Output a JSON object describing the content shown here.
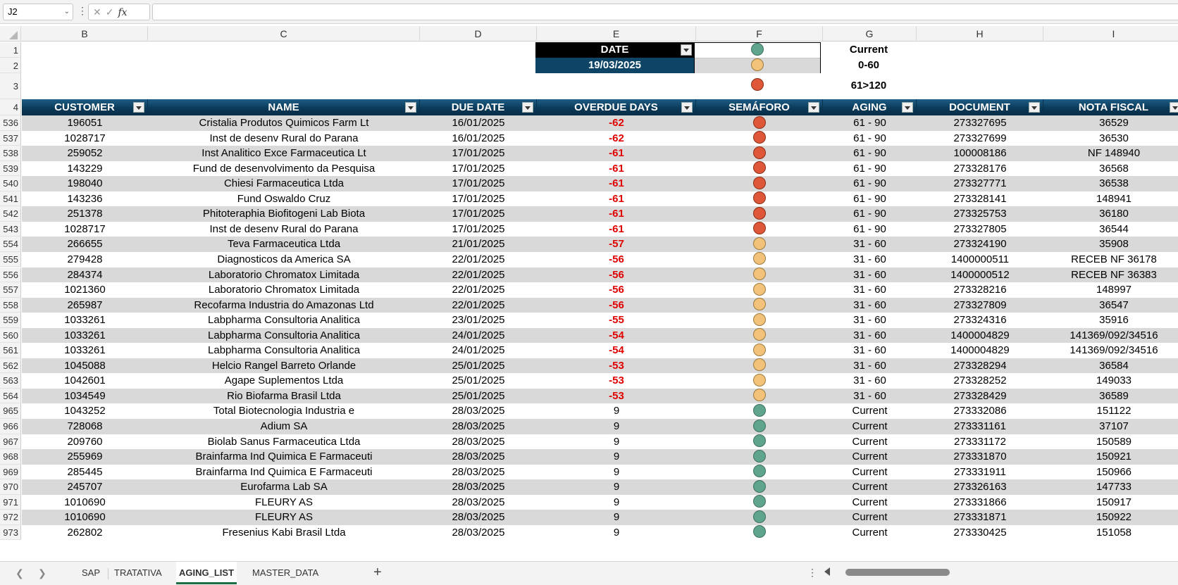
{
  "formula_bar": {
    "name_box": "J2",
    "formula": ""
  },
  "columns": [
    "B",
    "C",
    "D",
    "E",
    "F",
    "G",
    "H",
    "I"
  ],
  "row_numbers_top": [
    "1",
    "2",
    "3",
    "4"
  ],
  "info": {
    "date_label": "DATE",
    "date_value": "19/03/2025",
    "legend": [
      {
        "color": "green",
        "label": "Current"
      },
      {
        "color": "yellow",
        "label": "0-60"
      },
      {
        "color": "red",
        "label": "61>120"
      }
    ]
  },
  "table_headers": [
    "CUSTOMER",
    "NAME",
    "DUE DATE",
    "OVERDUE DAYS",
    "SEMÁFORO",
    "AGING",
    "DOCUMENT",
    "NOTA FISCAL"
  ],
  "rows": [
    {
      "n": "536",
      "customer": "196051",
      "name": "Cristalia Produtos Quimicos Farm Lt",
      "due": "16/01/2025",
      "overdue": "-62",
      "sem": "red",
      "aging": "61 - 90",
      "doc": "273327695",
      "nf": "36529"
    },
    {
      "n": "537",
      "customer": "1028717",
      "name": "Inst de desenv Rural do Parana",
      "due": "16/01/2025",
      "overdue": "-62",
      "sem": "red",
      "aging": "61 - 90",
      "doc": "273327699",
      "nf": "36530"
    },
    {
      "n": "538",
      "customer": "259052",
      "name": "Inst Analitico Exce Farmaceutica Lt",
      "due": "17/01/2025",
      "overdue": "-61",
      "sem": "red",
      "aging": "61 - 90",
      "doc": "100008186",
      "nf": "NF 148940"
    },
    {
      "n": "539",
      "customer": "143229",
      "name": "Fund de desenvolvimento da Pesquisa",
      "due": "17/01/2025",
      "overdue": "-61",
      "sem": "red",
      "aging": "61 - 90",
      "doc": "273328176",
      "nf": "36568"
    },
    {
      "n": "540",
      "customer": "198040",
      "name": "Chiesi Farmaceutica Ltda",
      "due": "17/01/2025",
      "overdue": "-61",
      "sem": "red",
      "aging": "61 - 90",
      "doc": "273327771",
      "nf": "36538"
    },
    {
      "n": "541",
      "customer": "143236",
      "name": "Fund Oswaldo Cruz",
      "due": "17/01/2025",
      "overdue": "-61",
      "sem": "red",
      "aging": "61 - 90",
      "doc": "273328141",
      "nf": "148941"
    },
    {
      "n": "542",
      "customer": "251378",
      "name": "Phitoteraphia Biofitogeni Lab Biota",
      "due": "17/01/2025",
      "overdue": "-61",
      "sem": "red",
      "aging": "61 - 90",
      "doc": "273325753",
      "nf": "36180"
    },
    {
      "n": "543",
      "customer": "1028717",
      "name": "Inst de desenv Rural do Parana",
      "due": "17/01/2025",
      "overdue": "-61",
      "sem": "red",
      "aging": "61 - 90",
      "doc": "273327805",
      "nf": "36544"
    },
    {
      "n": "554",
      "customer": "266655",
      "name": "Teva Farmaceutica Ltda",
      "due": "21/01/2025",
      "overdue": "-57",
      "sem": "yellow",
      "aging": "31 - 60",
      "doc": "273324190",
      "nf": "35908"
    },
    {
      "n": "555",
      "customer": "279428",
      "name": "Diagnosticos da America SA",
      "due": "22/01/2025",
      "overdue": "-56",
      "sem": "yellow",
      "aging": "31 - 60",
      "doc": "1400000511",
      "nf": "RECEB NF 36178"
    },
    {
      "n": "556",
      "customer": "284374",
      "name": "Laboratorio Chromatox Limitada",
      "due": "22/01/2025",
      "overdue": "-56",
      "sem": "yellow",
      "aging": "31 - 60",
      "doc": "1400000512",
      "nf": "RECEB NF 36383"
    },
    {
      "n": "557",
      "customer": "1021360",
      "name": "Laboratorio Chromatox Limitada",
      "due": "22/01/2025",
      "overdue": "-56",
      "sem": "yellow",
      "aging": "31 - 60",
      "doc": "273328216",
      "nf": "148997"
    },
    {
      "n": "558",
      "customer": "265987",
      "name": "Recofarma Industria do Amazonas Ltd",
      "due": "22/01/2025",
      "overdue": "-56",
      "sem": "yellow",
      "aging": "31 - 60",
      "doc": "273327809",
      "nf": "36547"
    },
    {
      "n": "559",
      "customer": "1033261",
      "name": "Labpharma Consultoria Analitica",
      "due": "23/01/2025",
      "overdue": "-55",
      "sem": "yellow",
      "aging": "31 - 60",
      "doc": "273324316",
      "nf": "35916"
    },
    {
      "n": "560",
      "customer": "1033261",
      "name": "Labpharma Consultoria Analitica",
      "due": "24/01/2025",
      "overdue": "-54",
      "sem": "yellow",
      "aging": "31 - 60",
      "doc": "1400004829",
      "nf": "141369/092/34516"
    },
    {
      "n": "561",
      "customer": "1033261",
      "name": "Labpharma Consultoria Analitica",
      "due": "24/01/2025",
      "overdue": "-54",
      "sem": "yellow",
      "aging": "31 - 60",
      "doc": "1400004829",
      "nf": "141369/092/34516"
    },
    {
      "n": "562",
      "customer": "1045088",
      "name": "Helcio Rangel Barreto Orlande",
      "due": "25/01/2025",
      "overdue": "-53",
      "sem": "yellow",
      "aging": "31 - 60",
      "doc": "273328294",
      "nf": "36584"
    },
    {
      "n": "563",
      "customer": "1042601",
      "name": "Agape Suplementos Ltda",
      "due": "25/01/2025",
      "overdue": "-53",
      "sem": "yellow",
      "aging": "31 - 60",
      "doc": "273328252",
      "nf": "149033"
    },
    {
      "n": "564",
      "customer": "1034549",
      "name": "Rio Biofarma Brasil Ltda",
      "due": "25/01/2025",
      "overdue": "-53",
      "sem": "yellow",
      "aging": "31 - 60",
      "doc": "273328429",
      "nf": "36589"
    },
    {
      "n": "965",
      "customer": "1043252",
      "name": "Total Biotecnologia Industria e",
      "due": "28/03/2025",
      "overdue": "9",
      "sem": "green",
      "aging": "Current",
      "doc": "273332086",
      "nf": "151122"
    },
    {
      "n": "966",
      "customer": "728068",
      "name": "Adium SA",
      "due": "28/03/2025",
      "overdue": "9",
      "sem": "green",
      "aging": "Current",
      "doc": "273331161",
      "nf": "37107"
    },
    {
      "n": "967",
      "customer": "209760",
      "name": "Biolab Sanus Farmaceutica Ltda",
      "due": "28/03/2025",
      "overdue": "9",
      "sem": "green",
      "aging": "Current",
      "doc": "273331172",
      "nf": "150589"
    },
    {
      "n": "968",
      "customer": "255969",
      "name": "Brainfarma Ind Quimica E Farmaceuti",
      "due": "28/03/2025",
      "overdue": "9",
      "sem": "green",
      "aging": "Current",
      "doc": "273331870",
      "nf": "150921"
    },
    {
      "n": "969",
      "customer": "285445",
      "name": "Brainfarma Ind Quimica E Farmaceuti",
      "due": "28/03/2025",
      "overdue": "9",
      "sem": "green",
      "aging": "Current",
      "doc": "273331911",
      "nf": "150966"
    },
    {
      "n": "970",
      "customer": "245707",
      "name": "Eurofarma Lab SA",
      "due": "28/03/2025",
      "overdue": "9",
      "sem": "green",
      "aging": "Current",
      "doc": "273326163",
      "nf": "147733"
    },
    {
      "n": "971",
      "customer": "1010690",
      "name": "FLEURY AS",
      "due": "28/03/2025",
      "overdue": "9",
      "sem": "green",
      "aging": "Current",
      "doc": "273331866",
      "nf": "150917"
    },
    {
      "n": "972",
      "customer": "1010690",
      "name": "FLEURY AS",
      "due": "28/03/2025",
      "overdue": "9",
      "sem": "green",
      "aging": "Current",
      "doc": "273331871",
      "nf": "150922"
    },
    {
      "n": "973",
      "customer": "262802",
      "name": "Fresenius Kabi Brasil Ltda",
      "due": "28/03/2025",
      "overdue": "9",
      "sem": "green",
      "aging": "Current",
      "doc": "273330425",
      "nf": "151058"
    }
  ],
  "sheet_tabs": [
    {
      "label": "SAP",
      "active": false
    },
    {
      "label": "TRATATIVA",
      "active": false
    },
    {
      "label": "AGING_LIST",
      "active": true
    },
    {
      "label": "MASTER_DATA",
      "active": false
    }
  ],
  "colors": {
    "header_blue": "#0e4566",
    "accent_green": "#1f6e43",
    "overdue_red": "#e00000"
  }
}
